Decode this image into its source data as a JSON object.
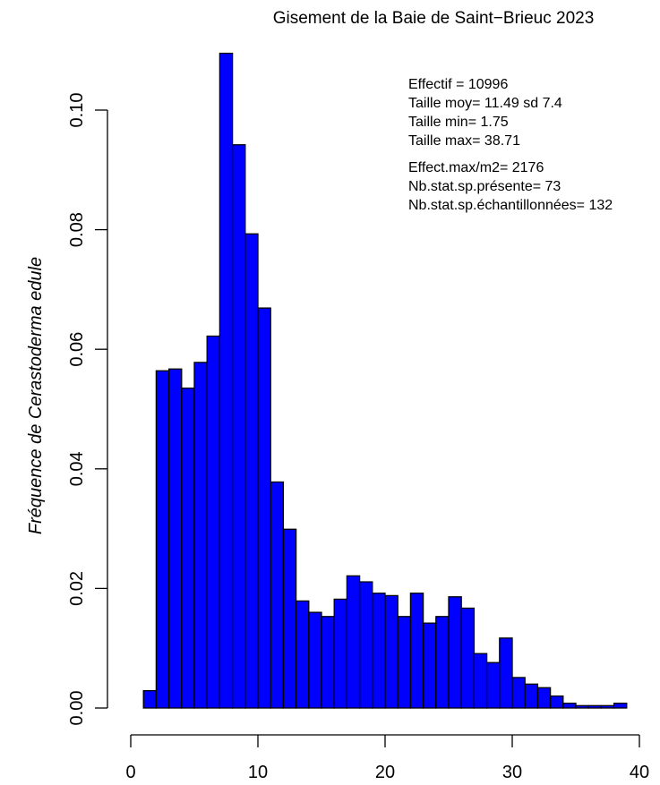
{
  "chart_data": {
    "type": "bar",
    "title": "Gisement de la Baie de Saint−Brieuc 2023",
    "xlabel": "",
    "ylabel_prefix": "Fréquence de ",
    "ylabel_species": "Cerastoderma edule",
    "xlim": [
      0,
      40
    ],
    "ylim": [
      0,
      0.11
    ],
    "x_ticks": [
      "0",
      "10",
      "20",
      "30",
      "40"
    ],
    "y_ticks": [
      "0.00",
      "0.02",
      "0.04",
      "0.06",
      "0.08",
      "0.10"
    ],
    "bar_color": "#0000ff",
    "bin_width": 1,
    "bins_start": [
      1,
      2,
      3,
      4,
      5,
      6,
      7,
      8,
      9,
      10,
      11,
      12,
      13,
      14,
      15,
      16,
      17,
      18,
      19,
      20,
      21,
      22,
      23,
      24,
      25,
      26,
      27,
      28,
      29,
      30,
      31,
      32,
      33,
      34,
      35,
      36,
      37,
      38
    ],
    "values": [
      0.0029,
      0.0564,
      0.0567,
      0.0535,
      0.0578,
      0.0622,
      0.1095,
      0.0942,
      0.0793,
      0.0669,
      0.0378,
      0.0299,
      0.0179,
      0.016,
      0.0153,
      0.0182,
      0.0221,
      0.0211,
      0.0192,
      0.0188,
      0.0153,
      0.0192,
      0.0142,
      0.0153,
      0.0186,
      0.0167,
      0.0091,
      0.0076,
      0.0117,
      0.0051,
      0.004,
      0.0034,
      0.002,
      0.0008,
      0.0004,
      0.0004,
      0.0004,
      0.0008
    ],
    "annotations": [
      "Effectif = 10996",
      "Taille moy= 11.49 sd 7.4",
      "Taille min= 1.75",
      "Taille max= 38.71",
      "Effect.max/m2= 2176",
      "Nb.stat.sp.présente= 73",
      "Nb.stat.sp.échantillonnées= 132"
    ]
  }
}
